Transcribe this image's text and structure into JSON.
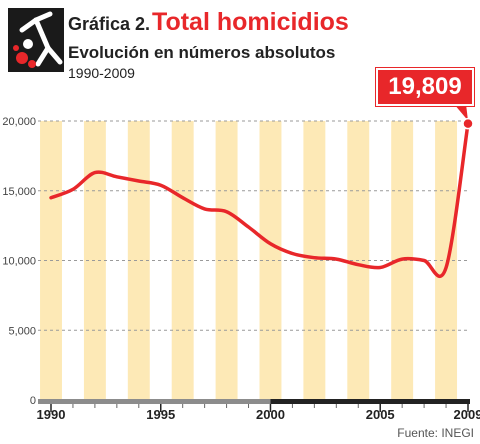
{
  "header": {
    "prefix": "Gráfica 2.",
    "title": "Total homicidios",
    "subtitle": "Evolución en números absolutos",
    "years": "1990-2009"
  },
  "callout": {
    "value_label": "19,809"
  },
  "source": "Fuente: INEGI",
  "colors": {
    "accent": "#e8272a",
    "stripe": "#fde9b6",
    "axis_gray": "#8c8c8c",
    "axis_dark": "#222222"
  },
  "chart_data": {
    "type": "line",
    "x": [
      1990,
      1991,
      1992,
      1993,
      1994,
      1995,
      1996,
      1997,
      1998,
      1999,
      2000,
      2001,
      2002,
      2003,
      2004,
      2005,
      2006,
      2007,
      2008,
      2009
    ],
    "series": [
      {
        "values": [
          14500,
          15100,
          16300,
          16000,
          15700,
          15400,
          14500,
          13700,
          13500,
          12400,
          11200,
          10500,
          10200,
          10100,
          9700,
          9500,
          10100,
          10000,
          9500,
          19809
        ]
      }
    ],
    "ylim": [
      0,
      20000
    ],
    "y_ticks": [
      "0",
      "5,000",
      "10,000",
      "15,000",
      "20,000"
    ],
    "x_tick_labels": [
      "1990",
      "1995",
      "2000",
      "2005",
      "2009"
    ],
    "highlight": {
      "x": 2009,
      "value": 19809
    },
    "grid": "dashed horizontal"
  }
}
